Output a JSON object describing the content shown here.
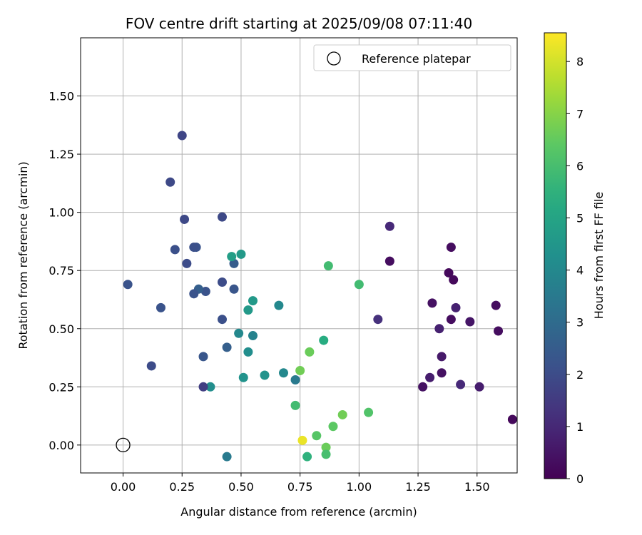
{
  "chart_data": {
    "type": "scatter",
    "title": "FOV centre drift starting at 2025/09/08 07:11:40",
    "xlabel": "Angular distance from reference (arcmin)",
    "ylabel": "Rotation from reference (arcmin)",
    "xlim": [
      -0.18,
      1.67
    ],
    "ylim": [
      -0.12,
      1.75
    ],
    "xticks": [
      "0.00",
      "0.25",
      "0.50",
      "0.75",
      "1.00",
      "1.25",
      "1.50"
    ],
    "xtick_values": [
      0,
      0.25,
      0.5,
      0.75,
      1.0,
      1.25,
      1.5
    ],
    "yticks": [
      "0.00",
      "0.25",
      "0.50",
      "0.75",
      "1.00",
      "1.25",
      "1.50"
    ],
    "ytick_values": [
      0,
      0.25,
      0.5,
      0.75,
      1.0,
      1.25,
      1.5
    ],
    "grid": true,
    "legend": {
      "position": "top-right",
      "label": "Reference platepar"
    },
    "reference_point": {
      "x": 0.0,
      "y": 0.0
    },
    "colorbar": {
      "label": "Hours from first FF file",
      "range": [
        0,
        8.55
      ],
      "ticks": [
        "0",
        "1",
        "2",
        "3",
        "4",
        "5",
        "6",
        "7",
        "8"
      ],
      "tick_values": [
        0,
        1,
        2,
        3,
        4,
        5,
        6,
        7,
        8
      ],
      "colormap": "viridis"
    },
    "points": [
      {
        "x": 1.65,
        "y": 0.11,
        "c": 0.2
      },
      {
        "x": 1.59,
        "y": 0.49,
        "c": 0.3
      },
      {
        "x": 1.58,
        "y": 0.6,
        "c": 0.3
      },
      {
        "x": 1.51,
        "y": 0.25,
        "c": 0.7
      },
      {
        "x": 1.47,
        "y": 0.53,
        "c": 0.5
      },
      {
        "x": 1.43,
        "y": 0.26,
        "c": 1.0
      },
      {
        "x": 1.41,
        "y": 0.59,
        "c": 0.8
      },
      {
        "x": 1.4,
        "y": 0.71,
        "c": 0.2
      },
      {
        "x": 1.39,
        "y": 0.54,
        "c": 0.3
      },
      {
        "x": 1.39,
        "y": 0.85,
        "c": 0.3
      },
      {
        "x": 1.38,
        "y": 0.74,
        "c": 0.2
      },
      {
        "x": 1.35,
        "y": 0.31,
        "c": 0.4
      },
      {
        "x": 1.35,
        "y": 0.38,
        "c": 0.6
      },
      {
        "x": 1.34,
        "y": 0.5,
        "c": 0.8
      },
      {
        "x": 1.31,
        "y": 0.61,
        "c": 0.4
      },
      {
        "x": 1.3,
        "y": 0.29,
        "c": 0.7
      },
      {
        "x": 1.27,
        "y": 0.25,
        "c": 0.4
      },
      {
        "x": 1.13,
        "y": 0.94,
        "c": 1.0
      },
      {
        "x": 1.13,
        "y": 0.79,
        "c": 0.3
      },
      {
        "x": 1.08,
        "y": 0.54,
        "c": 1.2
      },
      {
        "x": 1.04,
        "y": 0.14,
        "c": 6.2
      },
      {
        "x": 1.0,
        "y": 0.69,
        "c": 5.9
      },
      {
        "x": 0.93,
        "y": 0.13,
        "c": 6.7
      },
      {
        "x": 0.89,
        "y": 0.08,
        "c": 6.4
      },
      {
        "x": 0.87,
        "y": 0.77,
        "c": 5.9
      },
      {
        "x": 0.86,
        "y": -0.01,
        "c": 6.6
      },
      {
        "x": 0.86,
        "y": -0.04,
        "c": 6.0
      },
      {
        "x": 0.85,
        "y": 0.45,
        "c": 5.3
      },
      {
        "x": 0.82,
        "y": 0.04,
        "c": 6.3
      },
      {
        "x": 0.79,
        "y": 0.4,
        "c": 6.6
      },
      {
        "x": 0.78,
        "y": -0.05,
        "c": 5.5
      },
      {
        "x": 0.76,
        "y": 0.02,
        "c": 8.3
      },
      {
        "x": 0.75,
        "y": 0.32,
        "c": 6.7
      },
      {
        "x": 0.73,
        "y": 0.17,
        "c": 5.9
      },
      {
        "x": 0.73,
        "y": 0.28,
        "c": 3.5
      },
      {
        "x": 0.68,
        "y": 0.31,
        "c": 4.0
      },
      {
        "x": 0.66,
        "y": 0.6,
        "c": 4.0
      },
      {
        "x": 0.6,
        "y": 0.3,
        "c": 4.4
      },
      {
        "x": 0.55,
        "y": 0.47,
        "c": 3.8
      },
      {
        "x": 0.55,
        "y": 0.62,
        "c": 4.6
      },
      {
        "x": 0.53,
        "y": 0.58,
        "c": 4.6
      },
      {
        "x": 0.53,
        "y": 0.4,
        "c": 4.2
      },
      {
        "x": 0.51,
        "y": 0.29,
        "c": 4.4
      },
      {
        "x": 0.5,
        "y": 0.82,
        "c": 4.6
      },
      {
        "x": 0.49,
        "y": 0.48,
        "c": 4.0
      },
      {
        "x": 0.47,
        "y": 0.78,
        "c": 2.5
      },
      {
        "x": 0.47,
        "y": 0.67,
        "c": 2.3
      },
      {
        "x": 0.46,
        "y": 0.81,
        "c": 4.8
      },
      {
        "x": 0.44,
        "y": 0.42,
        "c": 2.6
      },
      {
        "x": 0.44,
        "y": -0.05,
        "c": 3.5
      },
      {
        "x": 0.42,
        "y": 0.98,
        "c": 1.9
      },
      {
        "x": 0.42,
        "y": 0.7,
        "c": 2.0
      },
      {
        "x": 0.42,
        "y": 0.54,
        "c": 2.1
      },
      {
        "x": 0.37,
        "y": 0.25,
        "c": 4.2
      },
      {
        "x": 0.35,
        "y": 0.66,
        "c": 2.2
      },
      {
        "x": 0.34,
        "y": 0.38,
        "c": 2.3
      },
      {
        "x": 0.34,
        "y": 0.25,
        "c": 1.6
      },
      {
        "x": 0.32,
        "y": 0.67,
        "c": 2.6
      },
      {
        "x": 0.31,
        "y": 0.85,
        "c": 2.2
      },
      {
        "x": 0.3,
        "y": 0.85,
        "c": 2.1
      },
      {
        "x": 0.3,
        "y": 0.65,
        "c": 2.2
      },
      {
        "x": 0.27,
        "y": 0.78,
        "c": 2.0
      },
      {
        "x": 0.26,
        "y": 0.97,
        "c": 1.9
      },
      {
        "x": 0.25,
        "y": 1.33,
        "c": 1.8
      },
      {
        "x": 0.22,
        "y": 0.84,
        "c": 2.1
      },
      {
        "x": 0.2,
        "y": 1.13,
        "c": 1.9
      },
      {
        "x": 0.16,
        "y": 0.59,
        "c": 2.2
      },
      {
        "x": 0.12,
        "y": 0.34,
        "c": 2.0
      },
      {
        "x": 0.02,
        "y": 0.69,
        "c": 2.2
      }
    ]
  }
}
